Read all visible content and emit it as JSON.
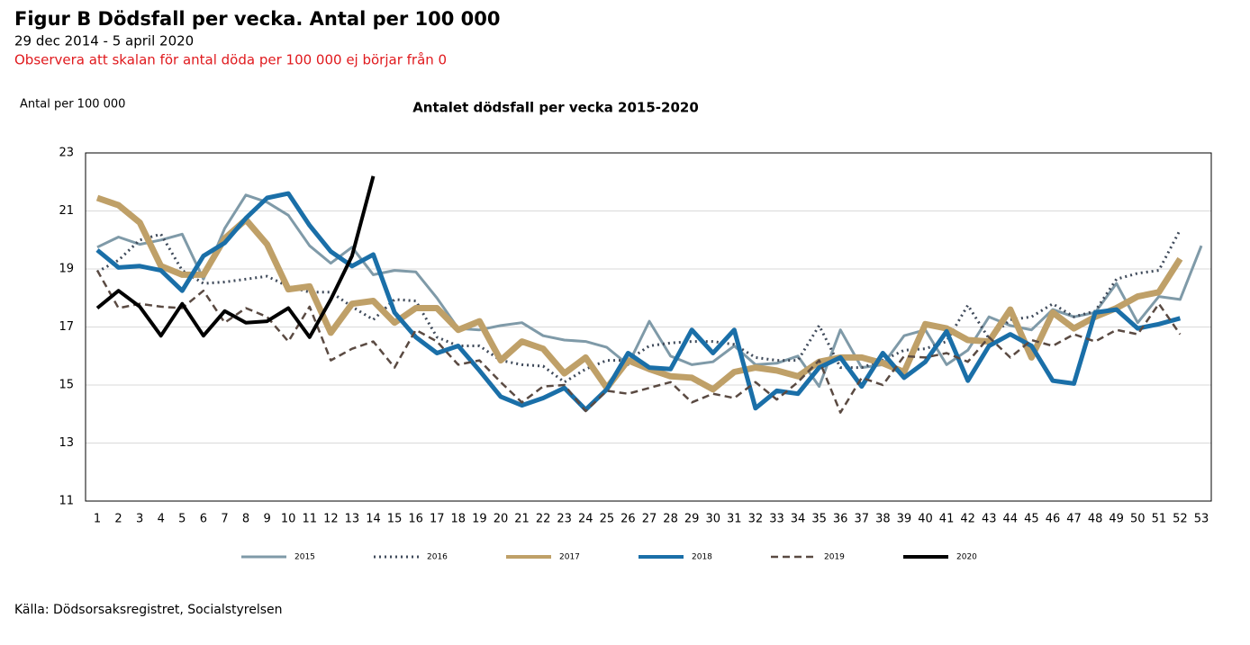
{
  "chart_data": {
    "type": "line",
    "title": "Figur B Dödsfall per vecka. Antal per 100 000",
    "subtitle": "29 dec 2014 - 5 april 2020",
    "note": "Observera att skalan för antal döda per 100 000 ej börjar från 0",
    "y_label": "Antal per 100 000",
    "chart_title": "Antalet dödsfall per vecka 2015-2020",
    "source": "Källa: Dödsorsaksregistret, Socialstyrelsen",
    "categories": [
      "1",
      "2",
      "3",
      "4",
      "5",
      "6",
      "7",
      "8",
      "9",
      "10",
      "11",
      "12",
      "13",
      "14",
      "15",
      "16",
      "17",
      "18",
      "19",
      "20",
      "21",
      "22",
      "23",
      "24",
      "25",
      "26",
      "27",
      "28",
      "29",
      "30",
      "31",
      "32",
      "33",
      "34",
      "35",
      "36",
      "37",
      "38",
      "39",
      "40",
      "41",
      "42",
      "43",
      "44",
      "45",
      "46",
      "47",
      "48",
      "49",
      "50",
      "51",
      "52",
      "53"
    ],
    "ylim": [
      11,
      23
    ],
    "yticks": [
      11,
      13,
      15,
      17,
      19,
      21,
      23
    ],
    "grid": true,
    "legend": "bottom",
    "series": [
      {
        "name": "2015",
        "color": "#7f9aa8",
        "width": 3,
        "dash": "solid",
        "values": [
          19.75,
          20.1,
          19.85,
          20.0,
          20.2,
          18.65,
          20.4,
          21.55,
          21.3,
          20.85,
          19.8,
          19.2,
          19.75,
          18.8,
          18.95,
          18.9,
          18.0,
          16.95,
          16.9,
          17.05,
          17.15,
          16.7,
          16.55,
          16.5,
          16.3,
          15.7,
          17.2,
          16.0,
          15.7,
          15.8,
          16.35,
          15.7,
          15.75,
          16.0,
          14.95,
          16.9,
          15.6,
          15.7,
          16.7,
          16.9,
          15.7,
          16.2,
          17.35,
          17.05,
          16.9,
          17.6,
          17.35,
          17.5,
          18.5,
          17.15,
          18.05,
          17.95,
          19.8
        ]
      },
      {
        "name": "2016",
        "color": "#3f4a5a",
        "width": 3,
        "dash": "dotted",
        "values": [
          18.9,
          19.3,
          20.0,
          20.2,
          18.95,
          18.5,
          18.55,
          18.65,
          18.75,
          18.4,
          18.2,
          18.2,
          17.7,
          17.25,
          17.95,
          17.9,
          16.65,
          16.35,
          16.35,
          15.85,
          15.7,
          15.65,
          15.1,
          15.55,
          15.85,
          15.85,
          16.35,
          16.45,
          16.5,
          16.5,
          16.4,
          15.95,
          15.85,
          15.85,
          17.05,
          15.6,
          15.6,
          15.85,
          16.2,
          16.25,
          16.5,
          17.75,
          16.6,
          17.25,
          17.35,
          17.8,
          17.35,
          17.55,
          18.65,
          18.85,
          18.95,
          20.35,
          null
        ]
      },
      {
        "name": "2017",
        "color": "#bfa068",
        "width": 7,
        "dash": "solid",
        "values": [
          21.45,
          21.2,
          20.6,
          19.1,
          18.8,
          18.8,
          20.05,
          20.7,
          19.85,
          18.3,
          18.4,
          16.8,
          17.8,
          17.9,
          17.15,
          17.65,
          17.65,
          16.9,
          17.2,
          15.85,
          16.5,
          16.25,
          15.4,
          15.95,
          14.9,
          15.85,
          15.55,
          15.3,
          15.25,
          14.85,
          15.45,
          15.6,
          15.5,
          15.3,
          15.8,
          15.95,
          15.95,
          15.75,
          15.45,
          17.1,
          16.95,
          16.55,
          16.5,
          17.6,
          15.95,
          17.5,
          16.95,
          17.35,
          17.65,
          18.05,
          18.2,
          19.35,
          null
        ]
      },
      {
        "name": "2018",
        "color": "#1a6fa8",
        "width": 5,
        "dash": "solid",
        "values": [
          19.65,
          19.05,
          19.1,
          18.95,
          18.25,
          19.45,
          19.9,
          20.75,
          21.45,
          21.6,
          20.5,
          19.6,
          19.1,
          19.5,
          17.5,
          16.65,
          16.1,
          16.35,
          15.5,
          14.6,
          14.3,
          14.55,
          14.9,
          14.15,
          14.85,
          16.1,
          15.6,
          15.55,
          16.9,
          16.1,
          16.9,
          14.2,
          14.8,
          14.7,
          15.6,
          15.95,
          14.95,
          16.1,
          15.25,
          15.8,
          16.85,
          15.15,
          16.35,
          16.75,
          16.35,
          15.15,
          15.05,
          17.5,
          17.6,
          16.95,
          17.1,
          17.3,
          null
        ]
      },
      {
        "name": "2019",
        "color": "#5a4a42",
        "width": 2.5,
        "dash": "dashed",
        "values": [
          18.95,
          17.65,
          17.8,
          17.7,
          17.65,
          18.25,
          17.15,
          17.65,
          17.35,
          16.5,
          17.7,
          15.85,
          16.25,
          16.5,
          15.6,
          16.9,
          16.5,
          15.7,
          15.85,
          15.1,
          14.4,
          14.95,
          15.0,
          14.1,
          14.8,
          14.7,
          14.9,
          15.1,
          14.4,
          14.7,
          14.55,
          15.1,
          14.5,
          15.1,
          15.85,
          14.05,
          15.25,
          15.0,
          16.0,
          15.95,
          16.1,
          15.8,
          16.65,
          15.95,
          16.55,
          16.35,
          16.75,
          16.5,
          16.9,
          16.75,
          17.8,
          16.75,
          null
        ]
      },
      {
        "name": "2020",
        "color": "#000000",
        "width": 4,
        "dash": "solid",
        "values": [
          17.65,
          18.25,
          17.7,
          16.7,
          17.8,
          16.7,
          17.55,
          17.15,
          17.2,
          17.65,
          16.65,
          17.95,
          19.45,
          22.2,
          null,
          null,
          null,
          null,
          null,
          null,
          null,
          null,
          null,
          null,
          null,
          null,
          null,
          null,
          null,
          null,
          null,
          null,
          null,
          null,
          null,
          null,
          null,
          null,
          null,
          null,
          null,
          null,
          null,
          null,
          null,
          null,
          null,
          null,
          null,
          null,
          null,
          null,
          null
        ]
      }
    ]
  }
}
